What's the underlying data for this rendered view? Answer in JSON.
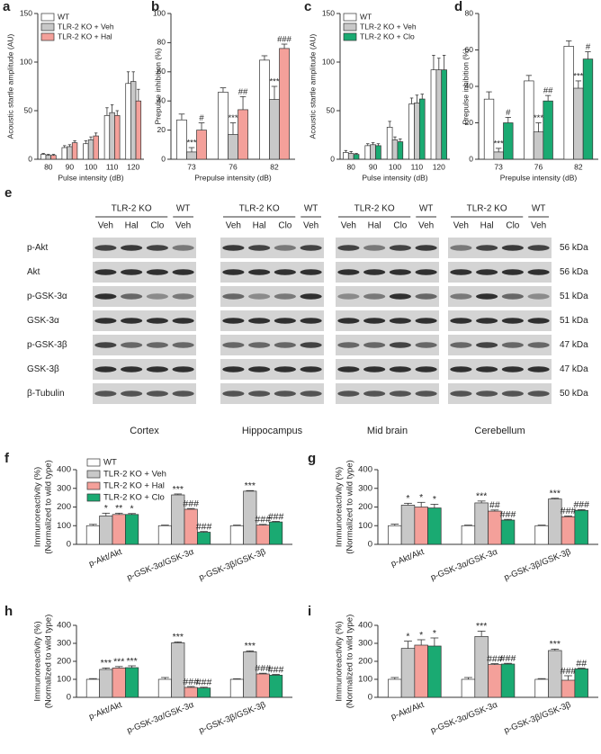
{
  "chart_data": [
    {
      "panel": "a",
      "type": "bar",
      "ylabel": "Acoustic startle amplitude (AU)",
      "xlabel": "Pulse intensity (dB)",
      "categories": [
        80,
        90,
        100,
        110,
        120
      ],
      "series": [
        {
          "name": "WT",
          "color": "#ffffff",
          "values": [
            5,
            12,
            16,
            45,
            78
          ],
          "errors": [
            1,
            2,
            3,
            8,
            12
          ]
        },
        {
          "name": "TLR-2 KO + Veh",
          "color": "#c8c8c8",
          "values": [
            4,
            13,
            20,
            48,
            80
          ],
          "errors": [
            1,
            2,
            3,
            8,
            10
          ]
        },
        {
          "name": "TLR-2 KO + Hal",
          "color": "#f4a09a",
          "values": [
            4,
            17,
            24,
            45,
            60
          ],
          "errors": [
            1,
            2,
            3,
            5,
            12
          ]
        }
      ],
      "ylim": [
        0,
        150
      ],
      "yticks": [
        0,
        50,
        100,
        150
      ],
      "legend": "top-left"
    },
    {
      "panel": "b",
      "type": "bar",
      "ylabel": "Prepulse inhibition (%)",
      "xlabel": "Prepulse intensity (dB)",
      "categories": [
        73,
        76,
        82
      ],
      "series": [
        {
          "color": "#ffffff",
          "values": [
            27,
            46,
            68
          ],
          "errors": [
            4,
            3,
            3
          ]
        },
        {
          "color": "#c8c8c8",
          "values": [
            5,
            17,
            41
          ],
          "errors": [
            3,
            8,
            9
          ],
          "annotations": [
            "***",
            "***",
            "***"
          ]
        },
        {
          "color": "#f4a09a",
          "values": [
            20,
            34,
            76
          ],
          "errors": [
            5,
            9,
            3
          ],
          "annotations": [
            "#",
            "##",
            "###"
          ]
        }
      ],
      "ylim": [
        0,
        100
      ],
      "yticks": [
        0,
        20,
        40,
        60,
        80,
        100
      ]
    },
    {
      "panel": "c",
      "type": "bar",
      "ylabel": "Acoustic startle amplitude (AU)",
      "xlabel": "Pulse intensity (dB)",
      "categories": [
        80,
        90,
        100,
        110,
        120
      ],
      "series": [
        {
          "name": "WT",
          "color": "#ffffff",
          "values": [
            7,
            14,
            33,
            57,
            92
          ],
          "errors": [
            2,
            2,
            6,
            6,
            15
          ]
        },
        {
          "name": "TLR-2 KO + Veh",
          "color": "#c8c8c8",
          "values": [
            6,
            15,
            20,
            58,
            92
          ],
          "errors": [
            2,
            2,
            3,
            8,
            12
          ]
        },
        {
          "name": "TLR-2 KO + Clo",
          "color": "#1aaa72",
          "values": [
            5,
            14,
            18,
            62,
            92
          ],
          "errors": [
            1,
            2,
            3,
            5,
            15
          ]
        }
      ],
      "ylim": [
        0,
        150
      ],
      "yticks": [
        0,
        50,
        100,
        150
      ],
      "legend": "top-left"
    },
    {
      "panel": "d",
      "type": "bar",
      "ylabel": "Prepulse inhibition (%)",
      "xlabel": "Prepulse intensity (dB)",
      "categories": [
        73,
        76,
        82
      ],
      "series": [
        {
          "color": "#ffffff",
          "values": [
            33,
            43,
            62
          ],
          "errors": [
            4,
            3,
            3
          ]
        },
        {
          "color": "#c8c8c8",
          "values": [
            4,
            15,
            39
          ],
          "errors": [
            2,
            5,
            4
          ],
          "annotations": [
            "***",
            "***",
            "***"
          ]
        },
        {
          "color": "#1aaa72",
          "values": [
            20,
            32,
            55
          ],
          "errors": [
            3,
            3,
            4
          ],
          "annotations": [
            "#",
            "##",
            "#"
          ]
        }
      ],
      "ylim": [
        0,
        80
      ],
      "yticks": [
        0,
        20,
        40,
        60,
        80
      ]
    },
    {
      "panel": "f",
      "type": "bar",
      "ylabel": [
        "Immunoreactivity (%)",
        "(Normalized to wild type)"
      ],
      "categories": [
        "p-Akt/Akt",
        "p-GSK-3α/GSK-3α",
        "p-GSK-3β/GSK-3β"
      ],
      "series": [
        {
          "name": "WT",
          "color": "#ffffff",
          "values": [
            100,
            100,
            100
          ],
          "errors": [
            7,
            3,
            3
          ]
        },
        {
          "name": "TLR-2 KO + Veh",
          "color": "#c8c8c8",
          "values": [
            152,
            265,
            285
          ],
          "errors": [
            15,
            5,
            3
          ],
          "annotations": [
            "*",
            "***",
            "***"
          ]
        },
        {
          "name": "TLR-2 KO + Hal",
          "color": "#f4a09a",
          "values": [
            160,
            188,
            103
          ],
          "errors": [
            7,
            4,
            4
          ],
          "annotations": [
            "**",
            "###",
            "###"
          ]
        },
        {
          "name": "TLR-2 KO + Clo",
          "color": "#1aaa72",
          "values": [
            160,
            65,
            120
          ],
          "errors": [
            5,
            4,
            3
          ],
          "annotations": [
            "*",
            "###",
            "###"
          ]
        }
      ],
      "ylim": [
        0,
        400
      ],
      "yticks": [
        0,
        100,
        200,
        300,
        400
      ],
      "legend": "top-left"
    },
    {
      "panel": "g",
      "type": "bar",
      "ylabel": [
        "Immunoreactivity (%)",
        "(Normalized to wild type)"
      ],
      "categories": [
        "p-Akt/Akt",
        "p-GSK-3α/GSK-3α",
        "p-GSK-3β/GSK-3β"
      ],
      "series": [
        {
          "color": "#ffffff",
          "values": [
            100,
            100,
            100
          ],
          "errors": [
            8,
            3,
            3
          ]
        },
        {
          "color": "#c8c8c8",
          "values": [
            210,
            222,
            243
          ],
          "errors": [
            10,
            10,
            4
          ],
          "annotations": [
            "*",
            "***",
            "***"
          ]
        },
        {
          "color": "#f4a09a",
          "values": [
            200,
            178,
            148
          ],
          "errors": [
            25,
            6,
            4
          ],
          "annotations": [
            "*",
            "##",
            "###"
          ]
        },
        {
          "color": "#1aaa72",
          "values": [
            195,
            130,
            182
          ],
          "errors": [
            20,
            4,
            4
          ],
          "annotations": [
            "*",
            "###",
            "###"
          ]
        }
      ],
      "ylim": [
        0,
        400
      ],
      "yticks": [
        0,
        100,
        200,
        300,
        400
      ]
    },
    {
      "panel": "h",
      "type": "bar",
      "ylabel": [
        "Immunoreactivity (%)",
        "(Normalized to wild type)"
      ],
      "categories": [
        "p-Akt/Akt",
        "p-GSK-3α/GSK-3α",
        "p-GSK-3β/GSK-3β"
      ],
      "series": [
        {
          "color": "#ffffff",
          "values": [
            100,
            100,
            100
          ],
          "errors": [
            4,
            10,
            3
          ]
        },
        {
          "color": "#c8c8c8",
          "values": [
            155,
            303,
            253
          ],
          "errors": [
            8,
            5,
            5
          ],
          "annotations": [
            "***",
            "***",
            "***"
          ]
        },
        {
          "color": "#f4a09a",
          "values": [
            163,
            55,
            130
          ],
          "errors": [
            8,
            5,
            4
          ],
          "annotations": [
            "***",
            "###",
            "###"
          ]
        },
        {
          "color": "#1aaa72",
          "values": [
            165,
            52,
            123
          ],
          "errors": [
            10,
            4,
            4
          ],
          "annotations": [
            "***",
            "###",
            "###"
          ]
        }
      ],
      "ylim": [
        0,
        400
      ],
      "yticks": [
        0,
        100,
        200,
        300,
        400
      ]
    },
    {
      "panel": "i",
      "type": "bar",
      "ylabel": [
        "Immunoreactivity (%)",
        "(Normalized to wild type)"
      ],
      "categories": [
        "p-Akt/Akt",
        "p-GSK-3α/GSK-3α",
        "p-GSK-3β/GSK-3β"
      ],
      "series": [
        {
          "color": "#ffffff",
          "values": [
            100,
            100,
            100
          ],
          "errors": [
            10,
            10,
            4
          ]
        },
        {
          "color": "#c8c8c8",
          "values": [
            272,
            338,
            260
          ],
          "errors": [
            40,
            30,
            8
          ],
          "annotations": [
            "*",
            "***",
            "***"
          ]
        },
        {
          "color": "#f4a09a",
          "values": [
            290,
            182,
            95
          ],
          "errors": [
            30,
            5,
            25
          ],
          "annotations": [
            "*",
            "###",
            "###"
          ]
        },
        {
          "color": "#1aaa72",
          "values": [
            285,
            185,
            158
          ],
          "errors": [
            45,
            4,
            4
          ],
          "annotations": [
            "*",
            "###",
            "##"
          ]
        }
      ],
      "ylim": [
        0,
        400
      ],
      "yticks": [
        0,
        100,
        200,
        300,
        400
      ]
    }
  ],
  "blot": {
    "panel": "e",
    "regions": [
      {
        "name": "Cortex",
        "groups": [
          "TLR-2 KO",
          "WT"
        ],
        "lanes": [
          "Veh",
          "Hal",
          "Clo",
          "Veh"
        ]
      },
      {
        "name": "Hippocampus",
        "groups": [
          "TLR-2 KO",
          "WT"
        ],
        "lanes": [
          "Veh",
          "Hal",
          "Clo",
          "Veh"
        ]
      },
      {
        "name": "Mid brain",
        "groups": [
          "TLR-2 KO",
          "WT"
        ],
        "lanes": [
          "Veh",
          "Hal",
          "Clo",
          "Veh"
        ]
      },
      {
        "name": "Cerebellum",
        "groups": [
          "TLR-2 KO",
          "WT"
        ],
        "lanes": [
          "Veh",
          "Hal",
          "Clo",
          "Veh"
        ]
      }
    ],
    "rows": [
      {
        "label": "p-Akt",
        "size": "56 kDa"
      },
      {
        "label": "Akt",
        "size": "56 kDa"
      },
      {
        "label": "p-GSK-3α",
        "size": "51 kDa"
      },
      {
        "label": "GSK-3α",
        "size": "51 kDa"
      },
      {
        "label": "p-GSK-3β",
        "size": "47 kDa"
      },
      {
        "label": "GSK-3β",
        "size": "47 kDa"
      },
      {
        "label": "β-Tubulin",
        "size": "50 kDa"
      }
    ]
  }
}
